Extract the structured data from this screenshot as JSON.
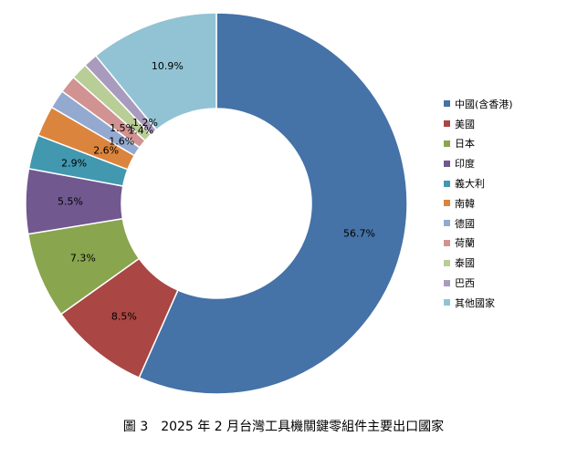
{
  "chart_data": {
    "type": "pie",
    "style": "donut",
    "title": "",
    "categories": [
      "中國(含香港)",
      "美國",
      "日本",
      "印度",
      "義大利",
      "南韓",
      "德國",
      "荷蘭",
      "泰國",
      "巴西",
      "其他國家"
    ],
    "values": [
      56.7,
      8.5,
      7.3,
      5.5,
      2.9,
      2.6,
      1.6,
      1.5,
      1.4,
      1.2,
      10.9
    ],
    "data_labels": [
      "56.7%",
      "8.5%",
      "7.3%",
      "5.5%",
      "2.9%",
      "2.6%",
      "1.6%",
      "1.5%",
      "1.4%",
      "1.2%",
      "10.9%"
    ],
    "colors": [
      "#4572A7",
      "#AA4643",
      "#89A54E",
      "#71588F",
      "#4198AF",
      "#DB843D",
      "#93A9CF",
      "#D19392",
      "#B9CD96",
      "#A99BBD",
      "#92C3D4"
    ],
    "unit": "%",
    "legend_position": "right"
  },
  "caption": "圖 3　2025 年 2 月台灣工具機關鍵零組件主要出口國家"
}
